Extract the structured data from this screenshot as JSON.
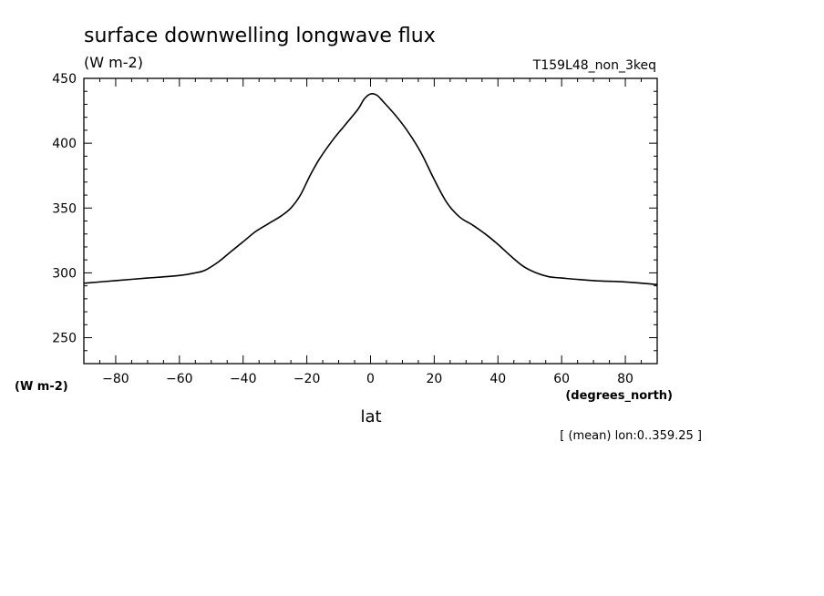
{
  "chart_data": {
    "type": "line",
    "title": "surface downwelling longwave flux",
    "ylabel_units": "(W m-2)",
    "run_label": "T159L48_non_3keq",
    "xlabel": "lat",
    "xlabel_units": "(degrees_north)",
    "y_axis_units_left": "(W m-2)",
    "footer_note": "[ (mean) lon:0..359.25 ]",
    "xlim": [
      -90,
      90
    ],
    "ylim": [
      230,
      450
    ],
    "x_ticks": [
      -80,
      -60,
      -40,
      -20,
      0,
      20,
      40,
      60,
      80
    ],
    "y_ticks": [
      250,
      300,
      350,
      400,
      450
    ],
    "grid": false,
    "series": [
      {
        "x": [
          -90,
          -80,
          -70,
          -60,
          -55,
          -52,
          -48,
          -44,
          -40,
          -36,
          -32,
          -28,
          -25,
          -22,
          -19,
          -16,
          -12,
          -8,
          -4,
          -2,
          0,
          2,
          4,
          8,
          12,
          16,
          20,
          24,
          28,
          32,
          36,
          40,
          44,
          48,
          52,
          56,
          60,
          70,
          80,
          90
        ],
        "y": [
          292,
          294,
          296,
          298,
          300,
          302,
          308,
          316,
          324,
          332,
          338,
          344,
          350,
          360,
          375,
          388,
          402,
          414,
          426,
          434,
          438,
          437,
          432,
          421,
          408,
          392,
          372,
          354,
          343,
          337,
          330,
          322,
          313,
          305,
          300,
          297,
          296,
          294,
          293,
          291
        ]
      }
    ]
  }
}
